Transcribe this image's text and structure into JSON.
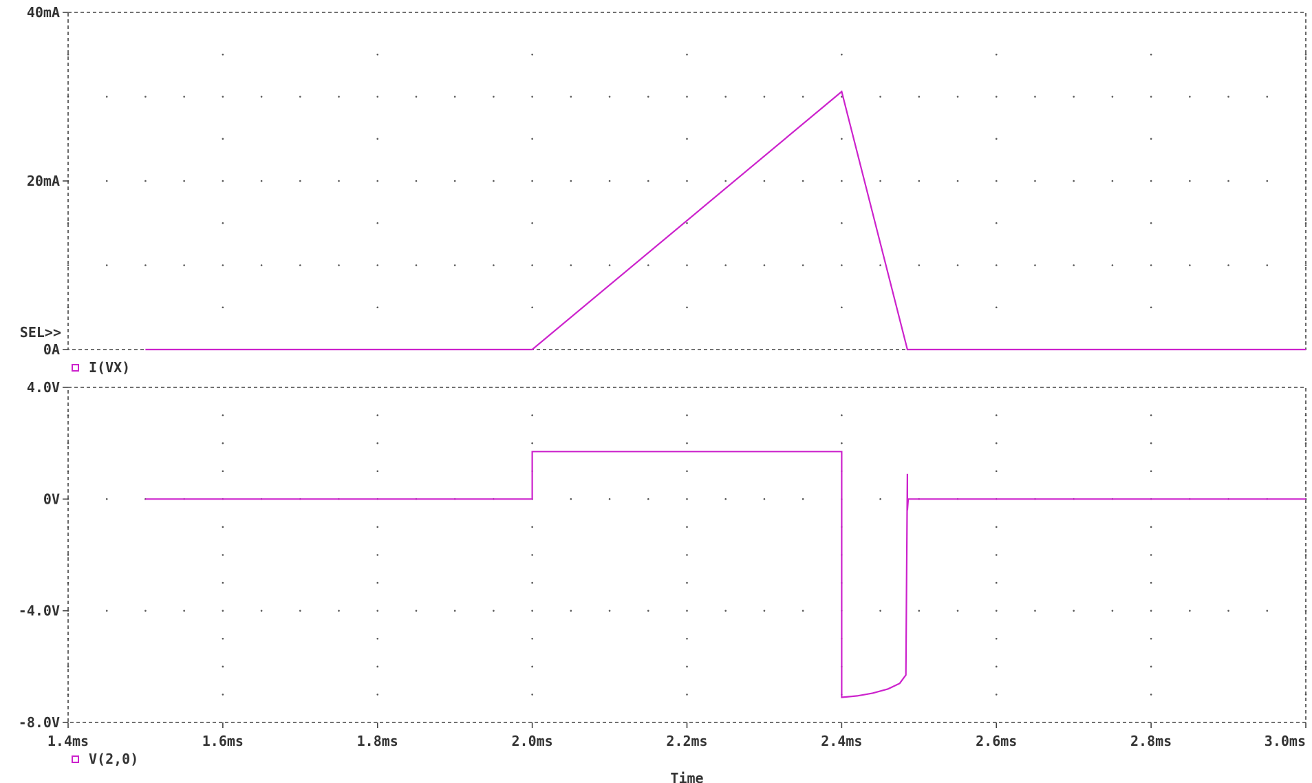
{
  "colors": {
    "trace": "#cc22cc",
    "axis": "#444444",
    "text": "#333333",
    "grid": "#555555"
  },
  "chart_data": [
    {
      "type": "line",
      "yticks": [
        {
          "value": 40,
          "label": "40mA"
        },
        {
          "value": 20,
          "label": "20mA"
        },
        {
          "value": 0,
          "label": "0A"
        }
      ],
      "ylim": [
        0,
        40
      ],
      "xlim": [
        1.4,
        3.0
      ],
      "grid": "dotted",
      "series": [
        {
          "name": "I(VX)",
          "x": [
            1.5,
            2.0,
            2.4,
            2.485,
            3.0
          ],
          "y": [
            0,
            0,
            30.6,
            0,
            0
          ]
        }
      ],
      "selection_marker": "SEL>>"
    },
    {
      "type": "line",
      "yticks": [
        {
          "value": 4,
          "label": "4.0V"
        },
        {
          "value": 0,
          "label": "0V"
        },
        {
          "value": -4,
          "label": "-4.0V"
        },
        {
          "value": -8,
          "label": "-8.0V"
        }
      ],
      "ylim": [
        -8,
        4
      ],
      "xlim": [
        1.4,
        3.0
      ],
      "grid": "dotted",
      "series": [
        {
          "name": "V(2,0)",
          "x": [
            1.5,
            2.0,
            2.0,
            2.4,
            2.4,
            2.42,
            2.44,
            2.46,
            2.475,
            2.483,
            2.485,
            2.485,
            2.486,
            3.0
          ],
          "y": [
            0,
            0,
            1.7,
            1.7,
            -7.1,
            -7.05,
            -6.95,
            -6.8,
            -6.6,
            -6.3,
            0.9,
            -0.4,
            0,
            0
          ]
        }
      ],
      "xticks": [
        "1.4ms",
        "1.6ms",
        "1.8ms",
        "2.0ms",
        "2.2ms",
        "2.4ms",
        "2.6ms",
        "2.8ms",
        "3.0ms"
      ],
      "xlabel": "Time"
    }
  ]
}
